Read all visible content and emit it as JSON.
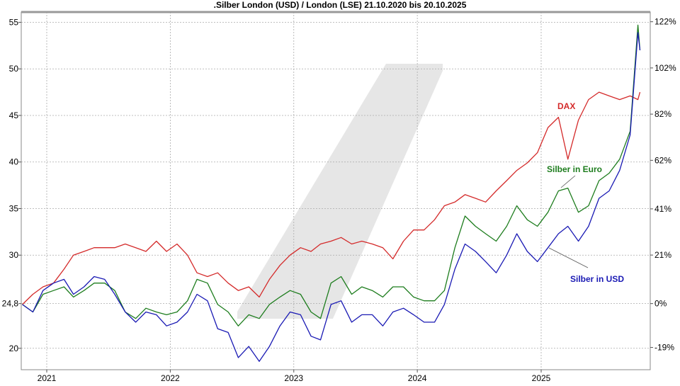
{
  "chart_data": {
    "type": "line",
    "title": ".Silber London (USD) / London (LSE) 21.10.2020 bis 20.10.2025",
    "xlabel": "",
    "ylabel": "",
    "ylim": [
      17.7,
      56.1
    ],
    "grid": true,
    "left_ticks": [
      {
        "value": 55,
        "label": "55"
      },
      {
        "value": 50,
        "label": "50"
      },
      {
        "value": 45,
        "label": "45"
      },
      {
        "value": 40,
        "label": "40"
      },
      {
        "value": 35,
        "label": "35"
      },
      {
        "value": 30,
        "label": "30"
      },
      {
        "value": 24.8,
        "label": "24,8"
      },
      {
        "value": 20,
        "label": "20"
      }
    ],
    "right_ticks": [
      {
        "value": 55.06,
        "label": "122%"
      },
      {
        "value": 50.1,
        "label": "102%"
      },
      {
        "value": 45.14,
        "label": "82%"
      },
      {
        "value": 40.18,
        "label": "62%"
      },
      {
        "value": 34.97,
        "label": "41%"
      },
      {
        "value": 30.01,
        "label": "21%"
      },
      {
        "value": 24.8,
        "label": "0%"
      },
      {
        "value": 20.09,
        "label": "-19%"
      }
    ],
    "x_ticks": [
      {
        "date": "2021-01-01",
        "label": "2021"
      },
      {
        "date": "2022-01-01",
        "label": "2022"
      },
      {
        "date": "2023-01-01",
        "label": "2023"
      },
      {
        "date": "2024-01-01",
        "label": "2024"
      },
      {
        "date": "2025-01-01",
        "label": "2025"
      }
    ],
    "x": [
      "2020-10-21",
      "2020-11-21",
      "2020-12-21",
      "2021-01-21",
      "2021-02-21",
      "2021-03-21",
      "2021-04-21",
      "2021-05-21",
      "2021-06-21",
      "2021-07-21",
      "2021-08-21",
      "2021-09-21",
      "2021-10-21",
      "2021-11-21",
      "2021-12-21",
      "2022-01-21",
      "2022-02-21",
      "2022-03-21",
      "2022-04-21",
      "2022-05-21",
      "2022-06-21",
      "2022-07-21",
      "2022-08-21",
      "2022-09-21",
      "2022-10-21",
      "2022-11-21",
      "2022-12-21",
      "2023-01-21",
      "2023-02-21",
      "2023-03-21",
      "2023-04-21",
      "2023-05-21",
      "2023-06-21",
      "2023-07-21",
      "2023-08-21",
      "2023-09-21",
      "2023-10-21",
      "2023-11-21",
      "2023-12-21",
      "2024-01-21",
      "2024-02-21",
      "2024-03-21",
      "2024-04-21",
      "2024-05-21",
      "2024-06-21",
      "2024-07-21",
      "2024-08-21",
      "2024-09-21",
      "2024-10-21",
      "2024-11-21",
      "2024-12-21",
      "2025-01-21",
      "2025-02-21",
      "2025-03-21",
      "2025-04-21",
      "2025-05-21",
      "2025-06-21",
      "2025-07-21",
      "2025-08-21",
      "2025-09-21",
      "2025-10-14",
      "2025-10-20"
    ],
    "series": [
      {
        "name": "DAX",
        "color": "#d42a2a",
        "values": [
          24.7,
          25.8,
          26.6,
          27.0,
          28.5,
          30.0,
          30.4,
          30.8,
          30.8,
          30.8,
          31.2,
          30.8,
          30.4,
          31.5,
          30.4,
          31.2,
          30.0,
          28.1,
          27.7,
          28.1,
          27.0,
          26.2,
          26.6,
          25.5,
          27.4,
          28.9,
          30.0,
          30.8,
          30.4,
          31.2,
          31.5,
          31.9,
          31.2,
          31.5,
          31.2,
          30.8,
          29.6,
          31.5,
          32.7,
          32.7,
          33.8,
          35.3,
          35.7,
          36.5,
          36.1,
          35.7,
          36.9,
          38.0,
          39.1,
          39.9,
          41.0,
          43.7,
          44.8,
          40.3,
          44.5,
          46.7,
          47.5,
          47.1,
          46.7,
          47.1,
          46.7,
          47.5
        ]
      },
      {
        "name": "Silber in Euro",
        "color": "#1e7d1e",
        "values": [
          24.7,
          23.9,
          25.8,
          26.2,
          26.6,
          25.5,
          26.2,
          27.0,
          27.0,
          26.2,
          23.9,
          23.2,
          24.3,
          23.9,
          23.6,
          23.9,
          25.1,
          27.4,
          27.0,
          24.7,
          23.9,
          22.4,
          23.6,
          23.2,
          24.7,
          25.5,
          26.2,
          25.8,
          23.9,
          23.2,
          27.0,
          27.7,
          25.8,
          26.6,
          26.2,
          25.5,
          26.6,
          26.6,
          25.5,
          25.1,
          25.1,
          26.2,
          30.8,
          34.2,
          33.1,
          32.3,
          31.5,
          33.1,
          35.3,
          33.8,
          33.1,
          34.6,
          36.9,
          37.2,
          34.6,
          35.3,
          38.0,
          38.8,
          40.3,
          43.3,
          54.7,
          52.0
        ]
      },
      {
        "name": "Silber in USD",
        "color": "#1a1ab4",
        "values": [
          24.7,
          23.9,
          26.2,
          27.0,
          27.4,
          25.8,
          26.6,
          27.7,
          27.4,
          25.8,
          23.9,
          22.8,
          23.9,
          23.6,
          22.4,
          22.8,
          23.9,
          25.8,
          25.1,
          22.1,
          21.7,
          19.0,
          20.2,
          18.6,
          20.2,
          22.4,
          23.9,
          23.6,
          21.3,
          20.9,
          24.7,
          25.1,
          22.8,
          23.6,
          23.6,
          22.4,
          23.9,
          24.3,
          23.6,
          22.8,
          22.8,
          24.7,
          28.5,
          31.2,
          30.4,
          29.3,
          28.1,
          30.0,
          32.3,
          30.4,
          29.3,
          30.8,
          32.3,
          33.1,
          31.5,
          33.1,
          36.1,
          36.9,
          39.1,
          42.9,
          53.9,
          52.0
        ]
      }
    ],
    "annotations": [
      {
        "text": "DAX",
        "series": "DAX",
        "color": "#d42a2a"
      },
      {
        "text": "Silber in Euro",
        "series": "Silber in Euro",
        "color": "#1e7d1e"
      },
      {
        "text": "Silber in USD",
        "series": "Silber in USD",
        "color": "#1a1ab4"
      }
    ],
    "legend": "inline-labels"
  }
}
